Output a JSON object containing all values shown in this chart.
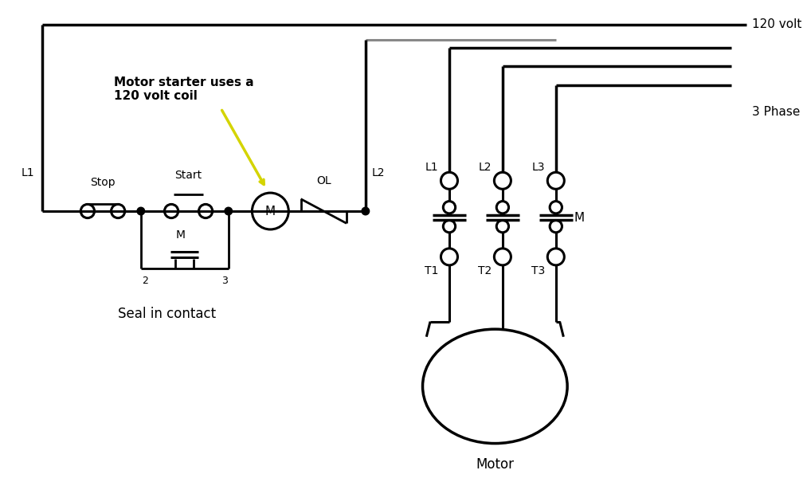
{
  "bg_color": "#ffffff",
  "line_color": "#000000",
  "gray_line_color": "#888888",
  "annotation_text": "Motor starter uses a\n120 volt coil",
  "label_120volt": "120 volt",
  "label_3phase": "3 Phase",
  "label_L1_left": "L1",
  "label_L2_right": "L2",
  "label_Stop": "Stop",
  "label_Start": "Start",
  "label_OL": "OL",
  "label_M_coil": "M",
  "label_M_seal": "M",
  "label_2": "2",
  "label_3": "3",
  "label_seal": "Seal in contact",
  "label_L1": "L1",
  "label_L2": "L2",
  "label_L3": "L3",
  "label_T1": "T1",
  "label_T2": "T2",
  "label_T3": "T3",
  "label_M_right": "M",
  "label_Motor": "Motor",
  "figw": 10.08,
  "figh": 6.0,
  "dpi": 100
}
